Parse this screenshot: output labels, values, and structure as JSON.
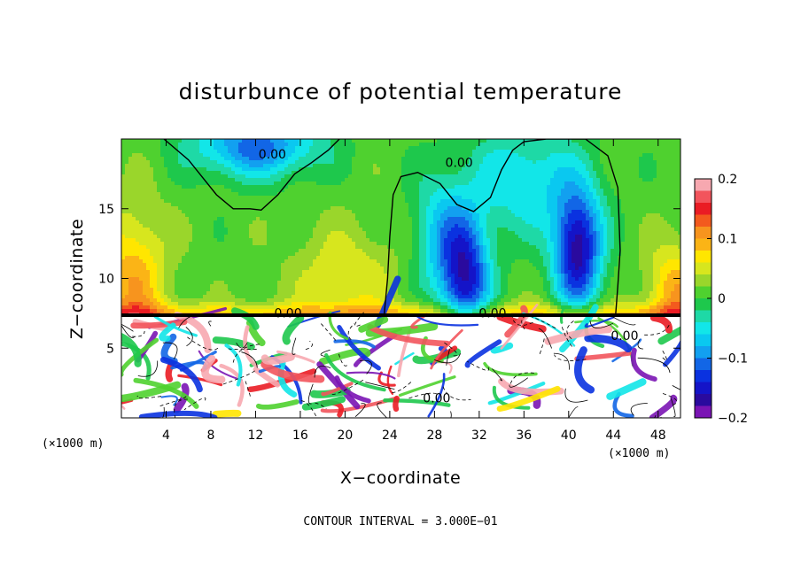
{
  "chart_data": {
    "type": "heatmap",
    "title": "disturbunce of potential temperature",
    "xlabel": "X−coordinate",
    "ylabel": "Z−coordinate",
    "x_unit_left": "(×1000 m)",
    "x_unit_right": "(×1000 m)",
    "xlim": [
      0,
      50
    ],
    "ylim": [
      0,
      20
    ],
    "x_ticks": [
      {
        "value": 4,
        "label": "4"
      },
      {
        "value": 8,
        "label": "8"
      },
      {
        "value": 12,
        "label": "12"
      },
      {
        "value": 16,
        "label": "16"
      },
      {
        "value": 20,
        "label": "20"
      },
      {
        "value": 24,
        "label": "24"
      },
      {
        "value": 28,
        "label": "28"
      },
      {
        "value": 32,
        "label": "32"
      },
      {
        "value": 36,
        "label": "36"
      },
      {
        "value": 40,
        "label": "40"
      },
      {
        "value": 44,
        "label": "44"
      },
      {
        "value": 48,
        "label": "48"
      }
    ],
    "y_ticks": [
      {
        "value": 5,
        "label": "5"
      },
      {
        "value": 10,
        "label": "10"
      },
      {
        "value": 15,
        "label": "15"
      }
    ],
    "colorbar": {
      "range": [
        -0.2,
        0.2
      ],
      "ticks": [
        {
          "value": 0.2,
          "label": "0.2"
        },
        {
          "value": 0.1,
          "label": "0.1"
        },
        {
          "value": 0,
          "label": "0"
        },
        {
          "value": -0.1,
          "label": "−0.1"
        },
        {
          "value": -0.2,
          "label": "−0.2"
        }
      ],
      "levels": [
        {
          "from": 0.18,
          "to": 0.2,
          "color": "#f7a8b0"
        },
        {
          "from": 0.16,
          "to": 0.18,
          "color": "#f2545c"
        },
        {
          "from": 0.14,
          "to": 0.16,
          "color": "#ea1c24"
        },
        {
          "from": 0.12,
          "to": 0.14,
          "color": "#f35a1e"
        },
        {
          "from": 0.1,
          "to": 0.12,
          "color": "#f7941e"
        },
        {
          "from": 0.08,
          "to": 0.1,
          "color": "#fbb416"
        },
        {
          "from": 0.06,
          "to": 0.08,
          "color": "#ffe600"
        },
        {
          "from": 0.04,
          "to": 0.06,
          "color": "#d7e61e"
        },
        {
          "from": 0.02,
          "to": 0.04,
          "color": "#9ad62b"
        },
        {
          "from": 0.0,
          "to": 0.02,
          "color": "#4fd12f"
        },
        {
          "from": -0.02,
          "to": 0.0,
          "color": "#1ec84c"
        },
        {
          "from": -0.04,
          "to": -0.02,
          "color": "#1ed9a6"
        },
        {
          "from": -0.06,
          "to": -0.04,
          "color": "#12e6e8"
        },
        {
          "from": -0.08,
          "to": -0.06,
          "color": "#0ac8f0"
        },
        {
          "from": -0.1,
          "to": -0.08,
          "color": "#12a0f0"
        },
        {
          "from": -0.12,
          "to": -0.1,
          "color": "#1266e6"
        },
        {
          "from": -0.14,
          "to": -0.12,
          "color": "#0a32e0"
        },
        {
          "from": -0.16,
          "to": -0.14,
          "color": "#1414c8"
        },
        {
          "from": -0.18,
          "to": -0.16,
          "color": "#2a0a9e"
        },
        {
          "from": -0.2,
          "to": -0.18,
          "color": "#7a14b4"
        }
      ]
    },
    "contour_label": "0.00",
    "contour_labels": [
      {
        "x": 13.5,
        "y": 18.6,
        "text": "0.00"
      },
      {
        "x": 30.2,
        "y": 18.0,
        "text": "0.00"
      },
      {
        "x": 14.9,
        "y": 7.2,
        "text": "0.00"
      },
      {
        "x": 33.2,
        "y": 7.2,
        "text": "0.00"
      },
      {
        "x": 45.0,
        "y": 5.6,
        "text": "0.00"
      },
      {
        "x": 28.2,
        "y": 1.1,
        "text": "0.00"
      }
    ],
    "contour_interval_text": "CONTOUR INTERVAL = 3.000E−01",
    "inversion_height": 7.3,
    "features": [
      {
        "name": "cold-anomaly-upper-left",
        "x": 12.0,
        "z": 19.5,
        "value": -0.12
      },
      {
        "name": "cold-anomaly-x31",
        "x": 30.8,
        "z": 10.0,
        "value": -0.16
      },
      {
        "name": "cold-anomaly-x41",
        "x": 40.8,
        "z": 12.0,
        "value": -0.18
      },
      {
        "name": "cold-anomaly-x28",
        "x": 28.5,
        "z": 13.0,
        "value": -0.07
      },
      {
        "name": "warm-band-left",
        "x": 2.0,
        "z": 8.0,
        "value": 0.09
      },
      {
        "name": "warm-band-right",
        "x": 49.0,
        "z": 9.0,
        "value": 0.09
      }
    ]
  }
}
